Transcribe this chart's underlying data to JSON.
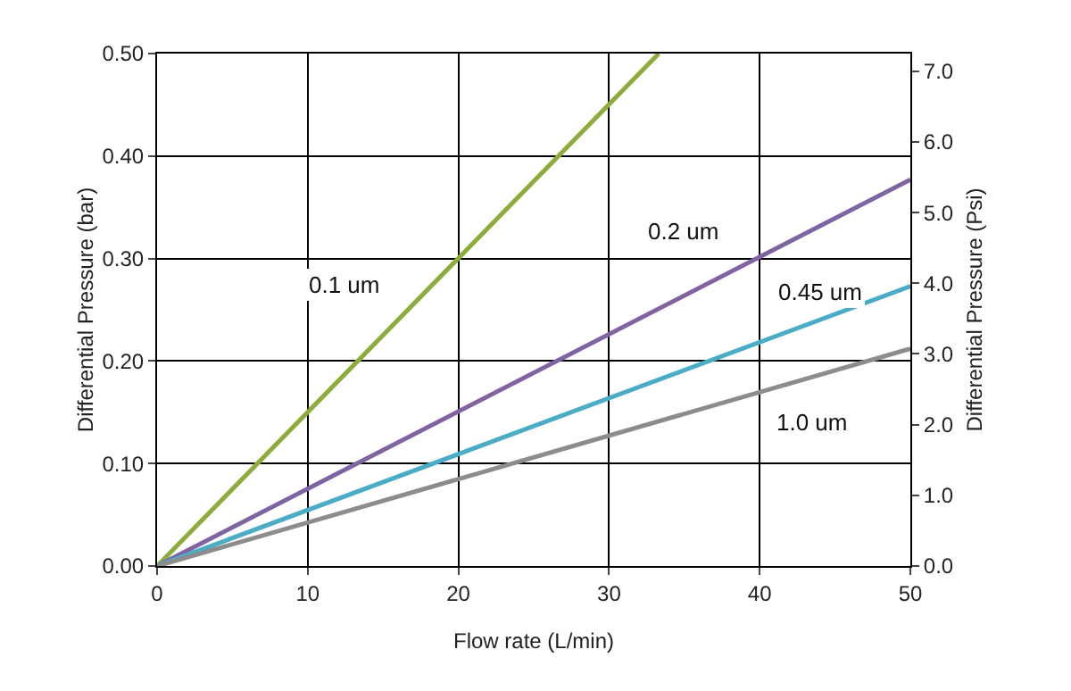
{
  "chart_data": {
    "type": "line",
    "xlabel": "Flow rate (L/min)",
    "ylabel": "Differential Pressure (bar)",
    "y2label": "Differential Pressure (Psi)",
    "xlim": [
      0,
      50
    ],
    "xticks": [
      0,
      10,
      20,
      30,
      40,
      50
    ],
    "ylim": [
      0,
      0.5
    ],
    "yticks": [
      {
        "value": 0,
        "label": "0.00"
      },
      {
        "value": 0.1,
        "label": "0.10"
      },
      {
        "value": 0.2,
        "label": "0.20"
      },
      {
        "value": 0.3,
        "label": "0.30"
      },
      {
        "value": 0.4,
        "label": "0.40"
      },
      {
        "value": 0.5,
        "label": "0.50"
      }
    ],
    "y2lim": [
      0,
      7.25
    ],
    "y2ticks": [
      {
        "value": 0,
        "label": "0.0"
      },
      {
        "value": 1,
        "label": "1.0"
      },
      {
        "value": 2,
        "label": "2.0"
      },
      {
        "value": 3,
        "label": "3.0"
      },
      {
        "value": 4,
        "label": "4.0"
      },
      {
        "value": 5,
        "label": "5.0"
      },
      {
        "value": 6,
        "label": "6.0"
      },
      {
        "value": 7,
        "label": "7.0"
      }
    ],
    "grid": true,
    "legend": false,
    "marker": "none",
    "line_style": "solid",
    "series": [
      {
        "name": "0.1 um",
        "color": "#8cad3c",
        "x": [
          0,
          33.3
        ],
        "values": [
          0,
          0.5
        ]
      },
      {
        "name": "0.2 um",
        "color": "#8064a2",
        "x": [
          0,
          50
        ],
        "values": [
          0,
          0.377
        ]
      },
      {
        "name": "0.45 um",
        "color": "#4bacc6",
        "x": [
          0,
          50
        ],
        "values": [
          0,
          0.273
        ]
      },
      {
        "name": "1.0 um",
        "color": "#8c8c8c",
        "x": [
          0,
          50
        ],
        "values": [
          0,
          0.212
        ]
      }
    ]
  }
}
